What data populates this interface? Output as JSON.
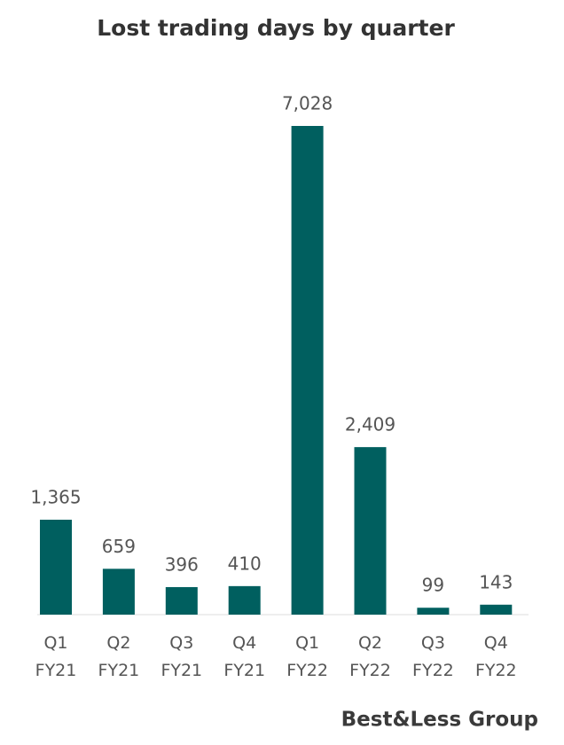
{
  "chart_data": {
    "type": "bar",
    "title": "Lost trading days by quarter",
    "categories": [
      "Q1 FY21",
      "Q2 FY21",
      "Q3 FY21",
      "Q4 FY21",
      "Q1 FY22",
      "Q2 FY22",
      "Q3 FY22",
      "Q4 FY22"
    ],
    "values": [
      1365,
      659,
      396,
      410,
      7028,
      2409,
      99,
      143
    ],
    "value_labels": [
      "1,365",
      "659",
      "396",
      "410",
      "7,028",
      "2,409",
      "99",
      "143"
    ],
    "color": "#005f5f",
    "source": "Best&Less Group"
  }
}
